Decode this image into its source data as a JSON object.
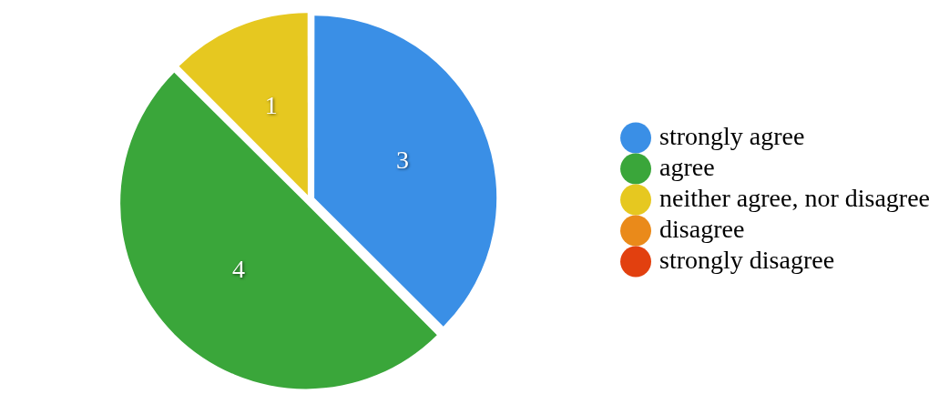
{
  "chart_data": {
    "type": "pie",
    "categories": [
      "strongly agree",
      "agree",
      "neither agree, nor disagree",
      "disagree",
      "strongly disagree"
    ],
    "values": [
      3,
      4,
      1,
      0,
      0
    ],
    "colors": [
      "#3a8fe6",
      "#3aa63a",
      "#e6c820",
      "#ea8a1a",
      "#e2400f"
    ],
    "value_labels": [
      "3",
      "4",
      "1",
      null,
      null
    ],
    "legend": "right"
  }
}
